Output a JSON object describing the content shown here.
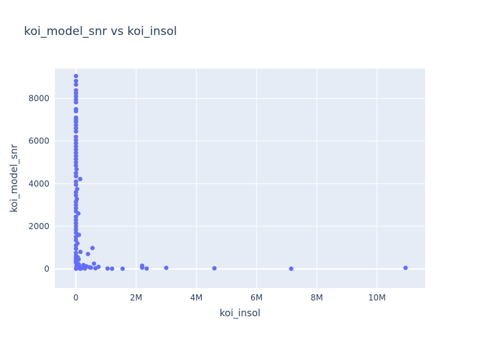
{
  "chart_data": {
    "type": "scatter",
    "title": "koi_model_snr vs koi_insol",
    "xlabel": "koi_insol",
    "ylabel": "koi_model_snr",
    "xlim": [
      -700000,
      11600000
    ],
    "ylim": [
      -900,
      9400
    ],
    "x_ticks": [
      0,
      2000000,
      4000000,
      6000000,
      8000000,
      10000000
    ],
    "x_tick_labels": [
      "0",
      "2M",
      "4M",
      "6M",
      "8M",
      "10M"
    ],
    "y_ticks": [
      0,
      2000,
      4000,
      6000,
      8000
    ],
    "y_tick_labels": [
      "0",
      "2000",
      "4000",
      "6000",
      "8000"
    ],
    "grid": true,
    "legend": "none",
    "colors": {
      "marker": "#636efa",
      "plot_bg": "#e5ecf6",
      "grid": "#ffffff",
      "text": "#2a3f5f"
    },
    "points": [
      {
        "x": 2000,
        "y": 9050
      },
      {
        "x": 3000,
        "y": 8820
      },
      {
        "x": 2500,
        "y": 8650
      },
      {
        "x": 1500,
        "y": 8380
      },
      {
        "x": 2000,
        "y": 8250
      },
      {
        "x": 3000,
        "y": 8100
      },
      {
        "x": 1000,
        "y": 7950
      },
      {
        "x": 2000,
        "y": 7820
      },
      {
        "x": 1000,
        "y": 7500
      },
      {
        "x": 2000,
        "y": 7400
      },
      {
        "x": 1000,
        "y": 7100
      },
      {
        "x": 2000,
        "y": 7000
      },
      {
        "x": 1500,
        "y": 6900
      },
      {
        "x": 2000,
        "y": 6750
      },
      {
        "x": 1000,
        "y": 6600
      },
      {
        "x": 2500,
        "y": 6450
      },
      {
        "x": 1000,
        "y": 6200
      },
      {
        "x": 1000,
        "y": 6050
      },
      {
        "x": 2000,
        "y": 5900
      },
      {
        "x": 1000,
        "y": 5750
      },
      {
        "x": 2000,
        "y": 5600
      },
      {
        "x": 1000,
        "y": 5450
      },
      {
        "x": 2000,
        "y": 5300
      },
      {
        "x": 1000,
        "y": 5150
      },
      {
        "x": 2000,
        "y": 5000
      },
      {
        "x": 1000,
        "y": 4850
      },
      {
        "x": 20000,
        "y": 4680
      },
      {
        "x": 1000,
        "y": 4500
      },
      {
        "x": 2000,
        "y": 4350
      },
      {
        "x": 140000,
        "y": 4220
      },
      {
        "x": 1000,
        "y": 4100
      },
      {
        "x": 2000,
        "y": 3950
      },
      {
        "x": 40000,
        "y": 3750
      },
      {
        "x": 1000,
        "y": 3600
      },
      {
        "x": 2000,
        "y": 3450
      },
      {
        "x": 30000,
        "y": 3280
      },
      {
        "x": 1000,
        "y": 3150
      },
      {
        "x": 2000,
        "y": 3000
      },
      {
        "x": 1000,
        "y": 2850
      },
      {
        "x": 2000,
        "y": 2700
      },
      {
        "x": 80000,
        "y": 2600
      },
      {
        "x": 1000,
        "y": 2450
      },
      {
        "x": 2000,
        "y": 2300
      },
      {
        "x": 1000,
        "y": 2150
      },
      {
        "x": 2000,
        "y": 2000
      },
      {
        "x": 1000,
        "y": 1850
      },
      {
        "x": 2000,
        "y": 1700
      },
      {
        "x": 100000,
        "y": 1600
      },
      {
        "x": 1000,
        "y": 1500
      },
      {
        "x": 2000,
        "y": 1350
      },
      {
        "x": 50000,
        "y": 1200
      },
      {
        "x": 1000,
        "y": 1100
      },
      {
        "x": 550000,
        "y": 980
      },
      {
        "x": 2000,
        "y": 950
      },
      {
        "x": 150000,
        "y": 800
      },
      {
        "x": 1000,
        "y": 750
      },
      {
        "x": 400000,
        "y": 700
      },
      {
        "x": 2000,
        "y": 600
      },
      {
        "x": 60000,
        "y": 550
      },
      {
        "x": 1000,
        "y": 500
      },
      {
        "x": 90000,
        "y": 450
      },
      {
        "x": 2000,
        "y": 400
      },
      {
        "x": 1000,
        "y": 300
      },
      {
        "x": 100000,
        "y": 200
      },
      {
        "x": 250000,
        "y": 180
      },
      {
        "x": 600000,
        "y": 250
      },
      {
        "x": 2200000,
        "y": 150
      },
      {
        "x": 750000,
        "y": 100
      },
      {
        "x": 500000,
        "y": 60
      },
      {
        "x": 350000,
        "y": 120
      },
      {
        "x": 30000,
        "y": 80
      },
      {
        "x": 10000,
        "y": 40
      },
      {
        "x": 120000,
        "y": 30
      },
      {
        "x": 200000,
        "y": 50
      },
      {
        "x": 300000,
        "y": 20
      },
      {
        "x": 450000,
        "y": 80
      },
      {
        "x": 650000,
        "y": 30
      },
      {
        "x": 1050000,
        "y": 20
      },
      {
        "x": 1200000,
        "y": 10
      },
      {
        "x": 1550000,
        "y": 10
      },
      {
        "x": 2200000,
        "y": 60
      },
      {
        "x": 2350000,
        "y": 20
      },
      {
        "x": 3000000,
        "y": 50
      },
      {
        "x": 4600000,
        "y": 30
      },
      {
        "x": 7150000,
        "y": 10
      },
      {
        "x": 10950000,
        "y": 50
      },
      {
        "x": 5000,
        "y": 10
      },
      {
        "x": 20000,
        "y": 150
      },
      {
        "x": 70000,
        "y": 250
      },
      {
        "x": 150000,
        "y": 10
      }
    ]
  }
}
